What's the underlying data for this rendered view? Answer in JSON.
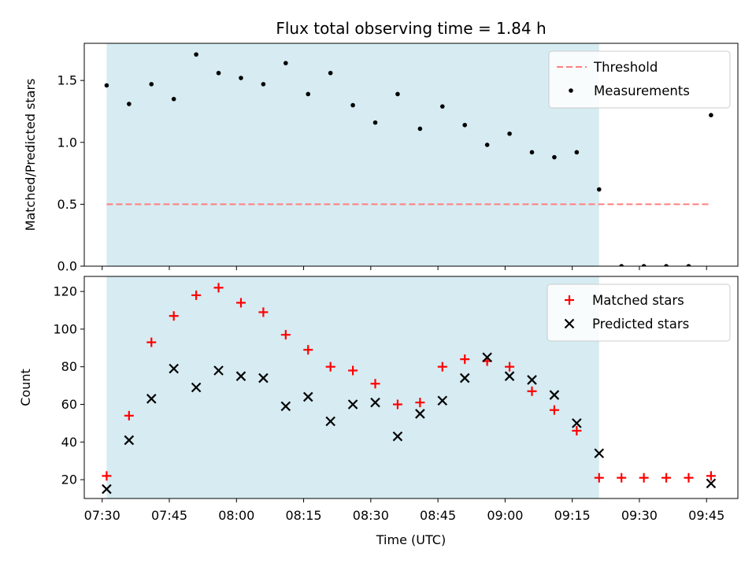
{
  "chart_data": [
    {
      "type": "scatter",
      "title": "Flux total observing time = 1.84 h",
      "xlabel": "",
      "ylabel": "Matched/Predicted stars",
      "ylim": [
        0,
        1.8
      ],
      "yticks": [
        0.0,
        0.5,
        1.0,
        1.5
      ],
      "ytick_labels": [
        "0.0",
        "0.5",
        "1.0",
        "1.5"
      ],
      "grid": false,
      "legend_position": "top-right",
      "shaded_span": {
        "start": "07:31",
        "end": "09:21",
        "color": "#add8e6"
      },
      "threshold": {
        "name": "Threshold",
        "value": 0.5,
        "x_start": "07:31",
        "x_end": "09:46",
        "color": "#ff7f7f",
        "style": "dashed"
      },
      "series": [
        {
          "name": "Measurements",
          "color": "#000000",
          "marker": "dot",
          "points": [
            {
              "x": "07:31",
              "y": 1.46
            },
            {
              "x": "07:36",
              "y": 1.31
            },
            {
              "x": "07:41",
              "y": 1.47
            },
            {
              "x": "07:46",
              "y": 1.35
            },
            {
              "x": "07:51",
              "y": 1.71
            },
            {
              "x": "07:56",
              "y": 1.56
            },
            {
              "x": "08:01",
              "y": 1.52
            },
            {
              "x": "08:06",
              "y": 1.47
            },
            {
              "x": "08:11",
              "y": 1.64
            },
            {
              "x": "08:16",
              "y": 1.39
            },
            {
              "x": "08:21",
              "y": 1.56
            },
            {
              "x": "08:26",
              "y": 1.3
            },
            {
              "x": "08:31",
              "y": 1.16
            },
            {
              "x": "08:36",
              "y": 1.39
            },
            {
              "x": "08:41",
              "y": 1.11
            },
            {
              "x": "08:46",
              "y": 1.29
            },
            {
              "x": "08:51",
              "y": 1.14
            },
            {
              "x": "08:56",
              "y": 0.98
            },
            {
              "x": "09:01",
              "y": 1.07
            },
            {
              "x": "09:06",
              "y": 0.92
            },
            {
              "x": "09:11",
              "y": 0.88
            },
            {
              "x": "09:16",
              "y": 0.92
            },
            {
              "x": "09:21",
              "y": 0.62
            },
            {
              "x": "09:26",
              "y": 0.0
            },
            {
              "x": "09:31",
              "y": 0.0
            },
            {
              "x": "09:36",
              "y": 0.0
            },
            {
              "x": "09:41",
              "y": 0.0
            },
            {
              "x": "09:46",
              "y": 1.22
            }
          ]
        }
      ]
    },
    {
      "type": "scatter",
      "title": "",
      "xlabel": "Time (UTC)",
      "ylabel": "Count",
      "ylim": [
        10,
        128
      ],
      "yticks": [
        20,
        40,
        60,
        80,
        100,
        120
      ],
      "ytick_labels": [
        "20",
        "40",
        "60",
        "80",
        "100",
        "120"
      ],
      "xlim": [
        "07:26",
        "09:52"
      ],
      "xticks": [
        "07:30",
        "07:45",
        "08:00",
        "08:15",
        "08:30",
        "08:45",
        "09:00",
        "09:15",
        "09:30",
        "09:45"
      ],
      "grid": false,
      "legend_position": "top-right",
      "shaded_span": {
        "start": "07:31",
        "end": "09:21",
        "color": "#add8e6"
      },
      "series": [
        {
          "name": "Matched stars",
          "color": "#ff0000",
          "marker": "plus",
          "points": [
            {
              "x": "07:31",
              "y": 22
            },
            {
              "x": "07:36",
              "y": 54
            },
            {
              "x": "07:41",
              "y": 93
            },
            {
              "x": "07:46",
              "y": 107
            },
            {
              "x": "07:51",
              "y": 118
            },
            {
              "x": "07:56",
              "y": 122
            },
            {
              "x": "08:01",
              "y": 114
            },
            {
              "x": "08:06",
              "y": 109
            },
            {
              "x": "08:11",
              "y": 97
            },
            {
              "x": "08:16",
              "y": 89
            },
            {
              "x": "08:21",
              "y": 80
            },
            {
              "x": "08:26",
              "y": 78
            },
            {
              "x": "08:31",
              "y": 71
            },
            {
              "x": "08:36",
              "y": 60
            },
            {
              "x": "08:41",
              "y": 61
            },
            {
              "x": "08:46",
              "y": 80
            },
            {
              "x": "08:51",
              "y": 84
            },
            {
              "x": "08:56",
              "y": 83
            },
            {
              "x": "09:01",
              "y": 80
            },
            {
              "x": "09:06",
              "y": 67
            },
            {
              "x": "09:11",
              "y": 57
            },
            {
              "x": "09:16",
              "y": 46
            },
            {
              "x": "09:21",
              "y": 21
            },
            {
              "x": "09:26",
              "y": 21
            },
            {
              "x": "09:31",
              "y": 21
            },
            {
              "x": "09:36",
              "y": 21
            },
            {
              "x": "09:41",
              "y": 21
            },
            {
              "x": "09:46",
              "y": 22
            }
          ]
        },
        {
          "name": "Predicted stars",
          "color": "#000000",
          "marker": "x",
          "points": [
            {
              "x": "07:31",
              "y": 15
            },
            {
              "x": "07:36",
              "y": 41
            },
            {
              "x": "07:41",
              "y": 63
            },
            {
              "x": "07:46",
              "y": 79
            },
            {
              "x": "07:51",
              "y": 69
            },
            {
              "x": "07:56",
              "y": 78
            },
            {
              "x": "08:01",
              "y": 75
            },
            {
              "x": "08:06",
              "y": 74
            },
            {
              "x": "08:11",
              "y": 59
            },
            {
              "x": "08:16",
              "y": 64
            },
            {
              "x": "08:21",
              "y": 51
            },
            {
              "x": "08:26",
              "y": 60
            },
            {
              "x": "08:31",
              "y": 61
            },
            {
              "x": "08:36",
              "y": 43
            },
            {
              "x": "08:41",
              "y": 55
            },
            {
              "x": "08:46",
              "y": 62
            },
            {
              "x": "08:51",
              "y": 74
            },
            {
              "x": "08:56",
              "y": 85
            },
            {
              "x": "09:01",
              "y": 75
            },
            {
              "x": "09:06",
              "y": 73
            },
            {
              "x": "09:11",
              "y": 65
            },
            {
              "x": "09:16",
              "y": 50
            },
            {
              "x": "09:21",
              "y": 34
            },
            {
              "x": "09:46",
              "y": 18
            }
          ]
        }
      ]
    }
  ]
}
